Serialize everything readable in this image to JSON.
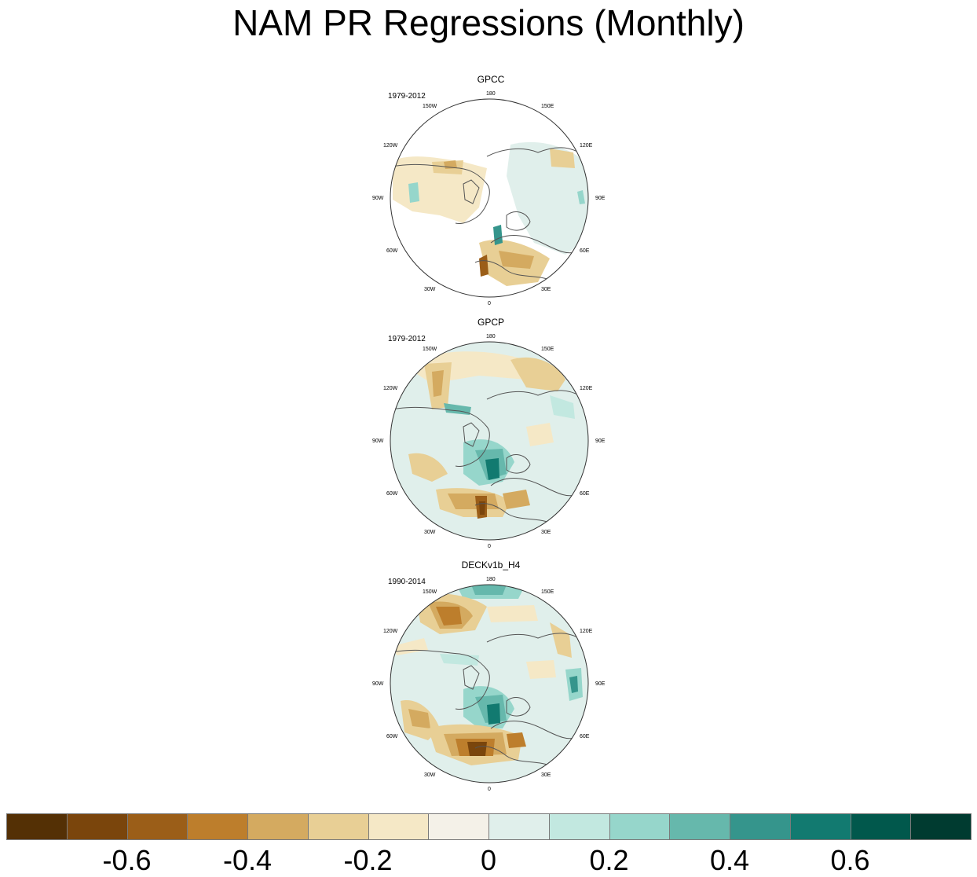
{
  "title": "NAM PR Regressions (Monthly)",
  "chart_data": {
    "type": "heatmap",
    "projection": "polar stereographic (north pole)",
    "variable": "precipitation regression onto NAM",
    "panels": [
      {
        "name": "GPCC",
        "period": "1979-2012"
      },
      {
        "name": "GPCP",
        "period": "1979-2012"
      },
      {
        "name": "DECKv1b_H4",
        "period": "1990-2014"
      }
    ],
    "longitude_labels": [
      "180",
      "150E",
      "120E",
      "90E",
      "60E",
      "30E",
      "0",
      "30W",
      "60W",
      "90W",
      "120W",
      "150W"
    ],
    "colorbar": {
      "levels": [
        -0.7,
        -0.6,
        -0.5,
        -0.4,
        -0.3,
        -0.2,
        -0.1,
        0,
        0.1,
        0.2,
        0.3,
        0.4,
        0.5,
        0.6,
        0.7
      ],
      "tick_labels": [
        "-0.6",
        "-0.4",
        "-0.2",
        "0",
        "0.2",
        "0.4",
        "0.6"
      ],
      "tick_values": [
        -0.6,
        -0.4,
        -0.2,
        0,
        0.2,
        0.4,
        0.6
      ],
      "colors": [
        "#543005",
        "#7a450c",
        "#9b5e18",
        "#bd7e2c",
        "#d4aa60",
        "#e8cf95",
        "#f5e8c6",
        "#f4f1e8",
        "#e0efeb",
        "#c2e8e0",
        "#96d6cb",
        "#66b8ac",
        "#35958c",
        "#127a70",
        "#01584c",
        "#003b30"
      ]
    }
  }
}
